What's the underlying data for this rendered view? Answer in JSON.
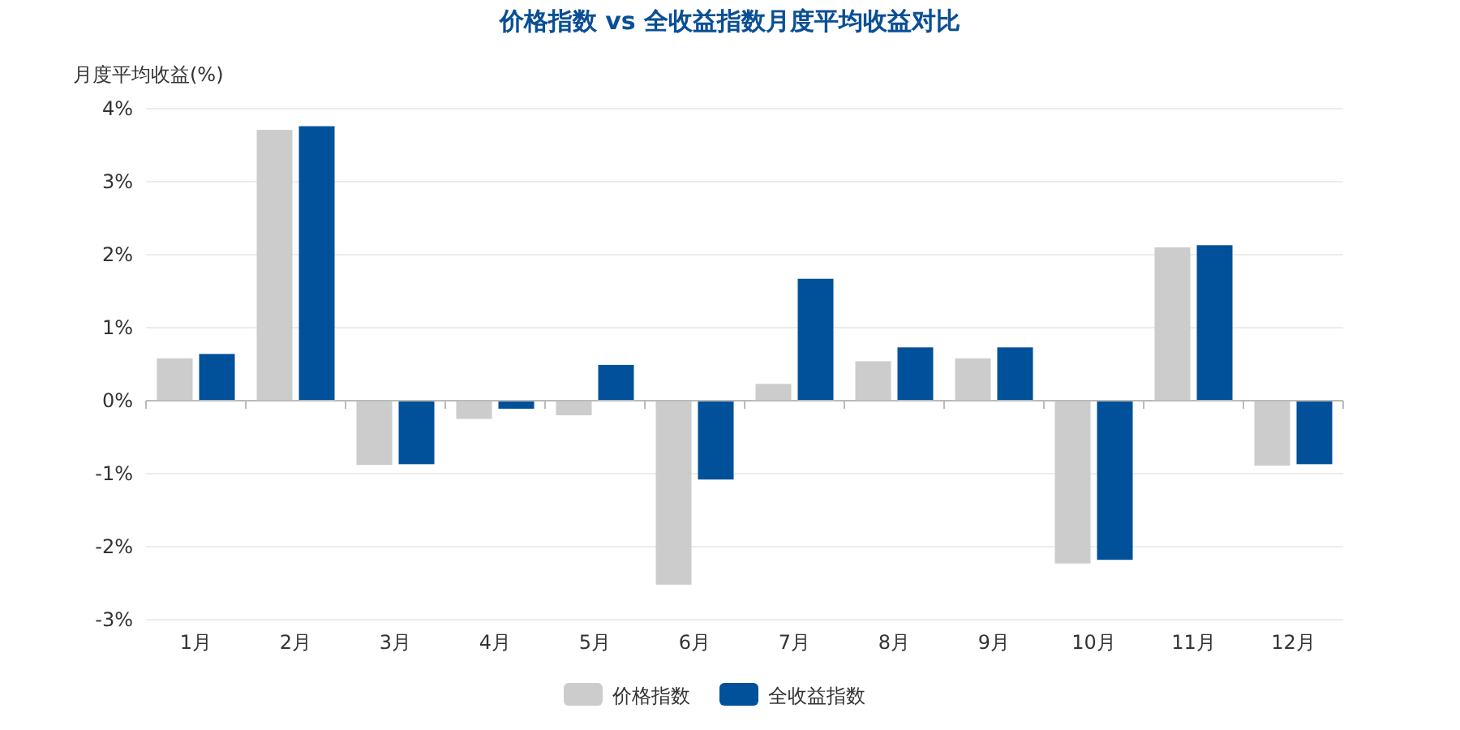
{
  "chart_data": {
    "type": "bar",
    "title": "价格指数 vs 全收益指数月度平均收益对比",
    "ylabel": "月度平均收益(%)",
    "categories": [
      "1月",
      "2月",
      "3月",
      "4月",
      "5月",
      "6月",
      "7月",
      "8月",
      "9月",
      "10月",
      "11月",
      "12月"
    ],
    "series": [
      {
        "name": "价格指数",
        "color": "#cccccc",
        "values": [
          0.58,
          3.71,
          -0.88,
          -0.25,
          -0.2,
          -2.52,
          0.23,
          0.54,
          0.58,
          -2.23,
          2.1,
          -0.89
        ]
      },
      {
        "name": "全收益指数",
        "color": "#00509a",
        "values": [
          0.64,
          3.76,
          -0.87,
          -0.11,
          0.49,
          -1.08,
          1.67,
          0.73,
          0.73,
          -2.18,
          2.13,
          -0.87
        ]
      }
    ],
    "ylim": [
      -3,
      4
    ],
    "yticks": [
      {
        "value": -3,
        "label": "-3%"
      },
      {
        "value": -2,
        "label": "-2%"
      },
      {
        "value": -1,
        "label": "-1%"
      },
      {
        "value": 0,
        "label": "0%"
      },
      {
        "value": 1,
        "label": "1%"
      },
      {
        "value": 2,
        "label": "2%"
      },
      {
        "value": 3,
        "label": "3%"
      },
      {
        "value": 4,
        "label": "4%"
      }
    ],
    "grid": "y",
    "legend": "bottom"
  }
}
